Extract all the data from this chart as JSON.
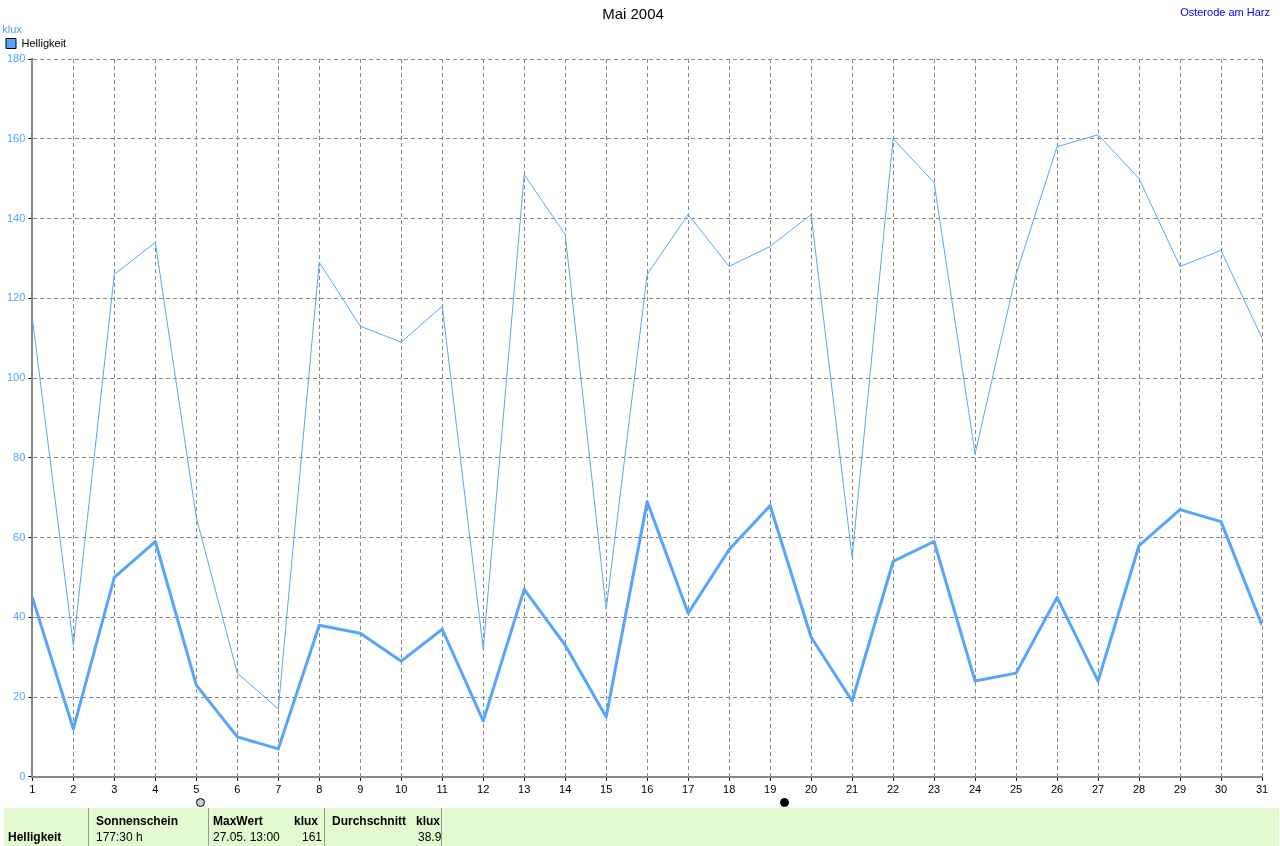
{
  "chart_data": {
    "type": "line",
    "title": "Mai 2004",
    "ylabel": "klux",
    "x": [
      1,
      2,
      3,
      4,
      5,
      6,
      7,
      8,
      9,
      10,
      11,
      12,
      13,
      14,
      15,
      16,
      17,
      18,
      19,
      20,
      21,
      22,
      23,
      24,
      25,
      26,
      27,
      28,
      29,
      30,
      31
    ],
    "xlim": [
      1,
      31
    ],
    "xticks": [
      1,
      2,
      3,
      4,
      5,
      6,
      7,
      8,
      9,
      10,
      11,
      12,
      13,
      14,
      15,
      16,
      17,
      18,
      19,
      20,
      21,
      22,
      23,
      24,
      25,
      26,
      27,
      28,
      29,
      30,
      31
    ],
    "ylim": [
      0,
      180
    ],
    "yticks": [
      0,
      20,
      40,
      60,
      80,
      100,
      120,
      140,
      160,
      180
    ],
    "series": [
      {
        "name": "Helligkeit",
        "color": "#55a5ff",
        "values": [
          45,
          12,
          50,
          59,
          23,
          10,
          7,
          38,
          36,
          29,
          37,
          14,
          47,
          33,
          15,
          69,
          41,
          57,
          68,
          35,
          19,
          54,
          59,
          24,
          26,
          45,
          24,
          58,
          67,
          64,
          38
        ]
      },
      {
        "color": "#55a5ff",
        "values": [
          115,
          33,
          126,
          134,
          65,
          26,
          17,
          129,
          113,
          109,
          118,
          32,
          151,
          136,
          42,
          126,
          141,
          128,
          133,
          141,
          55,
          160,
          149,
          81,
          126,
          158,
          161,
          150,
          128,
          132,
          110
        ]
      }
    ],
    "grid": true,
    "legend": "top left",
    "marker": "none",
    "line_style": "solid",
    "annotations": [
      "Osterode am Harz",
      "Helligkeit",
      "Sonnenschein",
      "177:30 h",
      "MaxWert",
      "klux",
      "27.05.  13:00",
      "161",
      "Durchschnitt",
      "klux",
      "38.9"
    ]
  }
}
